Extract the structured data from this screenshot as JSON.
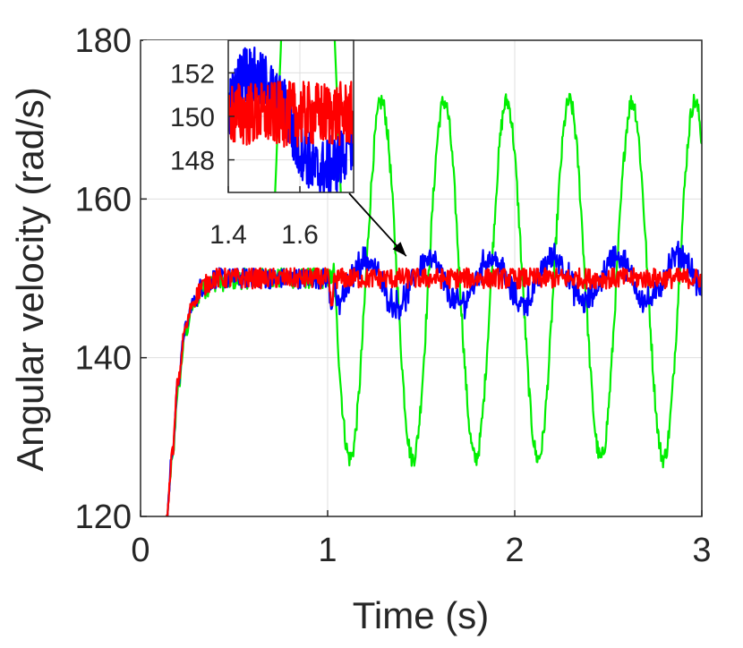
{
  "chart_data": [
    {
      "id": "main",
      "type": "line",
      "title": "",
      "xlabel": "Time (s)",
      "ylabel": "Angular velocity (rad/s)",
      "xlim": [
        0,
        3
      ],
      "ylim": [
        120,
        180
      ],
      "x_ticks": [
        0,
        1,
        2,
        3
      ],
      "x_tick_labels": [
        "0",
        "1",
        "2",
        "3"
      ],
      "y_ticks": [
        120,
        140,
        160,
        180
      ],
      "y_tick_labels": [
        "120",
        "140",
        "160",
        "180"
      ],
      "grid": true,
      "legend": "none",
      "series": [
        {
          "color": "#00ee00",
          "description": "rise to ~150 by t=0.35 s, then sustained oscillation after t=1 s",
          "oscillation": {
            "start": 1.03,
            "center": 149.8,
            "amplitude": 22.5,
            "period": 0.335,
            "first_min_time": 1.12
          },
          "points": [
            [
              0.14,
              120.0
            ],
            [
              0.17,
              127.0
            ],
            [
              0.2,
              136.0
            ],
            [
              0.24,
              143.0
            ],
            [
              0.28,
              146.5
            ],
            [
              0.33,
              148.6
            ],
            [
              0.4,
              149.6
            ],
            [
              0.6,
              150.0
            ],
            [
              1.0,
              150.0
            ],
            [
              1.03,
              150.0
            ],
            [
              1.12,
              127.5
            ],
            [
              1.29,
              172.0
            ],
            [
              1.45,
              127.5
            ],
            [
              1.62,
              172.0
            ],
            [
              1.79,
              127.5
            ],
            [
              1.96,
              172.0
            ],
            [
              2.12,
              127.5
            ],
            [
              2.29,
              172.0
            ],
            [
              2.46,
              127.5
            ],
            [
              2.63,
              172.0
            ],
            [
              2.79,
              127.5
            ],
            [
              2.96,
              172.0
            ],
            [
              3.0,
              160.0
            ]
          ]
        },
        {
          "color": "#0000ff",
          "description": "tracks ~150 rad/s with a dip at t=1 s and small +/-3 oscillation afterwards",
          "disturbance": {
            "start": 1.0,
            "center": 150.0,
            "amplitude": 3.2,
            "period": 0.335
          },
          "points": [
            [
              0.14,
              120.0
            ],
            [
              0.17,
              128.0
            ],
            [
              0.2,
              137.0
            ],
            [
              0.24,
              143.8
            ],
            [
              0.28,
              147.0
            ],
            [
              0.33,
              149.0
            ],
            [
              0.4,
              150.0
            ],
            [
              1.0,
              150.0
            ],
            [
              1.02,
              146.8
            ],
            [
              1.04,
              149.5
            ],
            [
              3.0,
              150.0
            ]
          ]
        },
        {
          "color": "#ff0000",
          "description": "tracks ~150 rad/s with a dip at t=1 s and small noise afterwards",
          "points": [
            [
              0.14,
              120.0
            ],
            [
              0.17,
              128.0
            ],
            [
              0.2,
              137.0
            ],
            [
              0.24,
              143.8
            ],
            [
              0.28,
              147.0
            ],
            [
              0.33,
              149.0
            ],
            [
              0.4,
              150.0
            ],
            [
              1.0,
              150.0
            ],
            [
              1.02,
              146.5
            ],
            [
              1.04,
              150.0
            ],
            [
              3.0,
              150.0
            ]
          ]
        }
      ]
    },
    {
      "id": "inset",
      "type": "line",
      "title": "",
      "xlim": [
        1.4,
        1.75
      ],
      "ylim": [
        146.5,
        153.5
      ],
      "x_ticks": [
        1.4,
        1.6
      ],
      "x_tick_labels": [
        "1.4",
        "1.6"
      ],
      "y_ticks": [
        148,
        150,
        152
      ],
      "y_tick_labels": [
        "148",
        "150",
        "152"
      ],
      "grid": true,
      "annotation": "arrow from inset to main plot near t=1.42 s, y=152 rad/s",
      "series": [
        {
          "color": "#00ee00",
          "points": [
            [
              1.52,
              146.5
            ],
            [
              1.54,
              150.0
            ],
            [
              1.56,
              153.5
            ]
          ]
        },
        {
          "color": "#0000ff",
          "points": [
            [
              1.4,
              150.5
            ],
            [
              1.45,
              152.0
            ],
            [
              1.5,
              151.5
            ],
            [
              1.55,
              150.5
            ],
            [
              1.6,
              148.5
            ],
            [
              1.65,
              147.5
            ],
            [
              1.7,
              147.8
            ],
            [
              1.75,
              149.0
            ]
          ]
        },
        {
          "color": "#ff0000",
          "points": [
            [
              1.4,
              150.2
            ],
            [
              1.5,
              150.0
            ],
            [
              1.6,
              150.0
            ],
            [
              1.75,
              150.0
            ]
          ]
        }
      ]
    }
  ]
}
